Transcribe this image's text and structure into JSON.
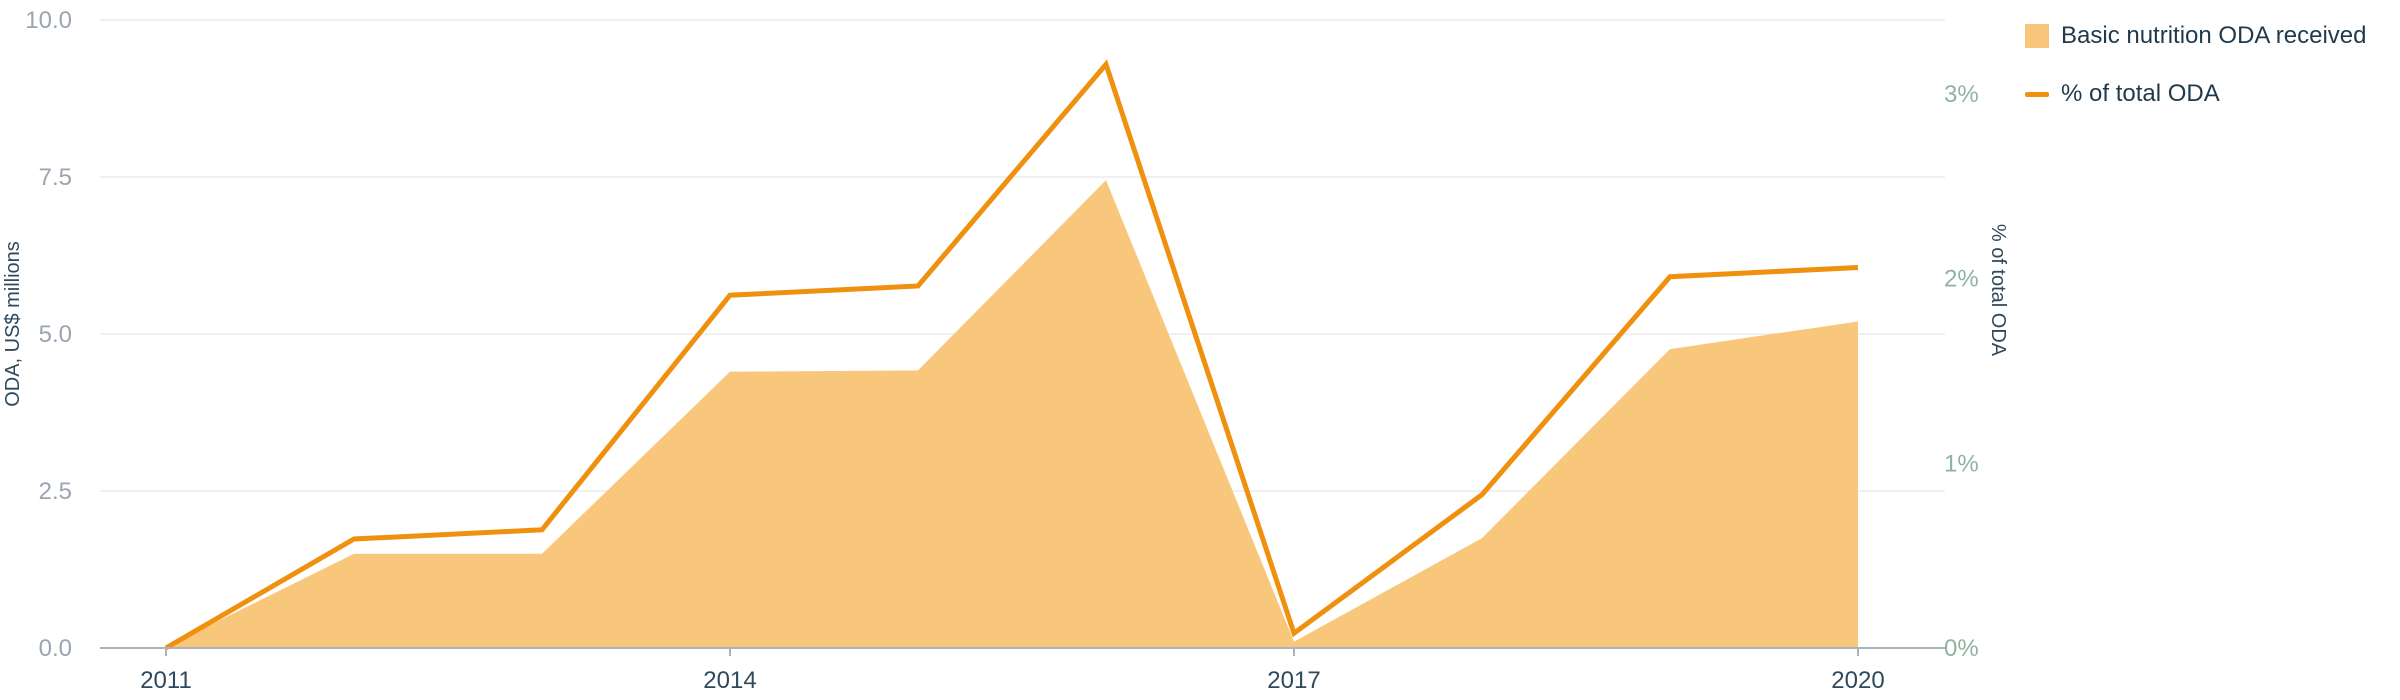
{
  "chart_data": {
    "type": "area",
    "x": [
      2011,
      2012,
      2013,
      2014,
      2015,
      2016,
      2017,
      2018,
      2019,
      2020
    ],
    "x_tick_labels": [
      "2011",
      "2014",
      "2017",
      "2020"
    ],
    "x_tick_values": [
      2011,
      2014,
      2017,
      2020
    ],
    "series": [
      {
        "name": "Basic nutrition ODA received",
        "type": "area",
        "axis": "left",
        "values": [
          0.02,
          1.5,
          1.5,
          4.4,
          4.42,
          7.45,
          0.1,
          1.75,
          4.76,
          5.2
        ],
        "color": "#f9c77b"
      },
      {
        "name": "% of total ODA",
        "type": "line",
        "axis": "right",
        "values": [
          0.0,
          0.59,
          0.64,
          1.91,
          1.96,
          3.16,
          0.08,
          0.83,
          2.01,
          2.06
        ],
        "color": "#f0900f"
      }
    ],
    "left_axis": {
      "label": "ODA, US$ millions",
      "ylim": [
        0,
        10
      ],
      "ticks": [
        0,
        2.5,
        5,
        7.5,
        10
      ],
      "tick_labels": [
        "0.0",
        "2.5",
        "5.0",
        "7.5",
        "10.0"
      ]
    },
    "right_axis": {
      "label": "% of total ODA",
      "ylim": [
        0,
        3.4
      ],
      "ticks": [
        0,
        1,
        2,
        3
      ],
      "tick_labels": [
        "0%",
        "1%",
        "2%",
        "3%"
      ]
    },
    "grid": true,
    "legend_position": "top-right",
    "colors": {
      "left_tick": "#9aa5b1",
      "right_tick": "#8fb3a0",
      "x_tick": "#2e4a5c",
      "axis_title": "#2e4a5c",
      "grid": "#ebebeb",
      "baseline": "#a9b4bd",
      "legend_text": "#1f3a4d"
    }
  }
}
